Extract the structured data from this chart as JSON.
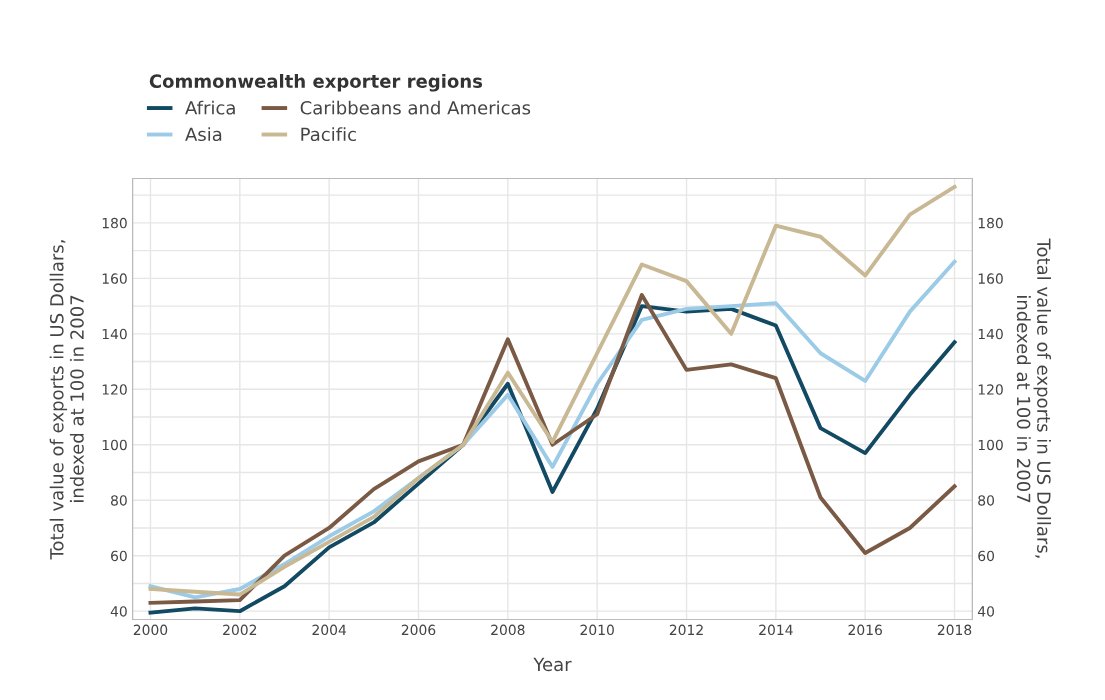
{
  "chart_data": {
    "type": "line",
    "legend_title": "Commonwealth exporter regions",
    "xlabel": "Year",
    "ylabel": "Total value of exports in US Dollars,\nindexed at 100 in 2007",
    "y2label": "Total value of exports in US Dollars,\nindexed at 100 in 2007",
    "x": [
      2000,
      2001,
      2002,
      2003,
      2004,
      2005,
      2006,
      2007,
      2008,
      2009,
      2010,
      2011,
      2012,
      2013,
      2014,
      2015,
      2016,
      2017,
      2018
    ],
    "series": [
      {
        "name": "Africa",
        "color": "#134a63",
        "values": [
          39.5,
          41,
          40,
          49,
          63,
          72,
          86,
          100,
          122,
          83,
          113,
          150,
          148,
          149,
          143,
          106,
          97,
          118,
          137
        ]
      },
      {
        "name": "Asia",
        "color": "#9ccbe8",
        "values": [
          49,
          45,
          48,
          57,
          67,
          76,
          88,
          100,
          118,
          92,
          122,
          145,
          149,
          150,
          151,
          133,
          123,
          148,
          166
        ]
      },
      {
        "name": "Caribbeans and Americas",
        "color": "#7a5a45",
        "values": [
          43,
          43.5,
          44,
          60,
          70,
          84,
          94,
          100,
          138,
          100,
          111,
          154,
          127,
          129,
          124,
          81,
          61,
          70,
          85
        ]
      },
      {
        "name": "Pacific",
        "color": "#c9b894",
        "values": [
          48,
          47,
          46,
          56,
          65,
          74,
          88,
          100,
          126,
          101,
          133,
          165,
          159,
          140,
          179,
          175,
          161,
          183,
          193
        ]
      }
    ],
    "xlim": [
      1999.6,
      2018.4
    ],
    "xticks": [
      2000,
      2002,
      2004,
      2006,
      2008,
      2010,
      2012,
      2014,
      2016,
      2018
    ],
    "ylim": [
      37,
      196
    ],
    "yticks": [
      40,
      {
        "value": 50,
        "label": null
      },
      60,
      {
        "value": 70,
        "label": null
      },
      80,
      {
        "value": 90,
        "label": null
      },
      100,
      {
        "value": 110,
        "label": null
      },
      120,
      {
        "value": 130,
        "label": null
      },
      140,
      {
        "value": 150,
        "label": null
      },
      160,
      {
        "value": 170,
        "label": null
      },
      180,
      {
        "value": 190,
        "label": null
      }
    ],
    "y2lim": [
      37,
      196
    ],
    "y2ticks": [
      40,
      60,
      80,
      100,
      120,
      140,
      160,
      180
    ],
    "grid": true,
    "legend": "top left",
    "marker": "none",
    "line_style": "solid"
  }
}
